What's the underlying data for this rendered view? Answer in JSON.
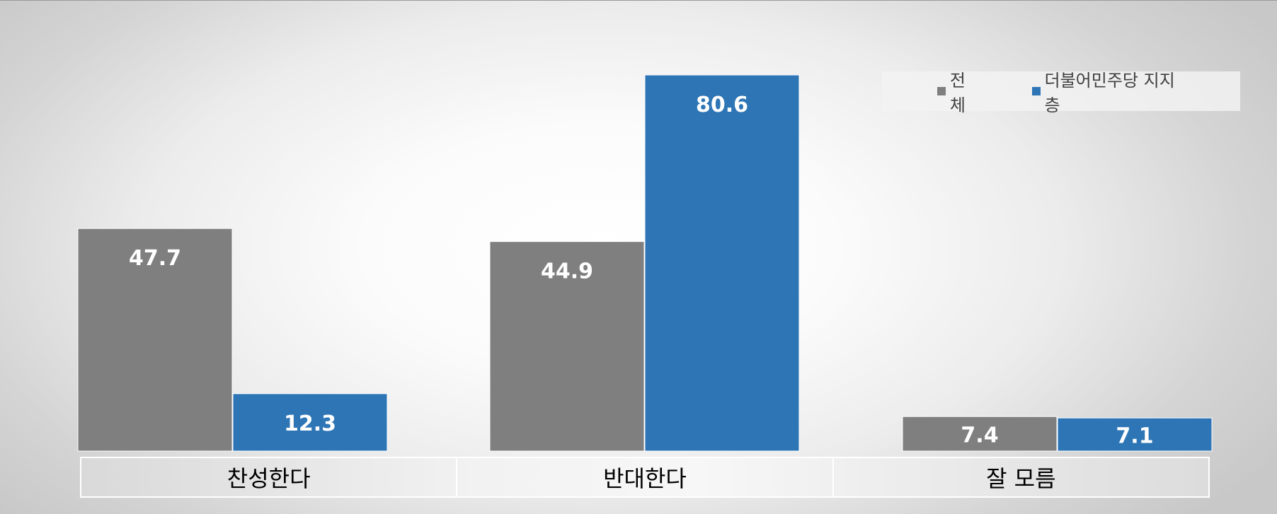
{
  "chart_data": {
    "type": "bar",
    "categories": [
      "찬성한다",
      "반대한다",
      "잘 모름"
    ],
    "series": [
      {
        "name": "전체",
        "values": [
          47.7,
          44.9,
          7.4
        ],
        "color": "#7f7f7f"
      },
      {
        "name": "더불어민주당 지지층",
        "values": [
          12.3,
          80.6,
          7.1
        ],
        "color": "#2e75b6"
      }
    ],
    "title": "",
    "xlabel": "",
    "ylabel": "",
    "ylim": [
      0,
      85
    ],
    "grid": false,
    "legend_position": "top-right",
    "data_labels": true
  }
}
